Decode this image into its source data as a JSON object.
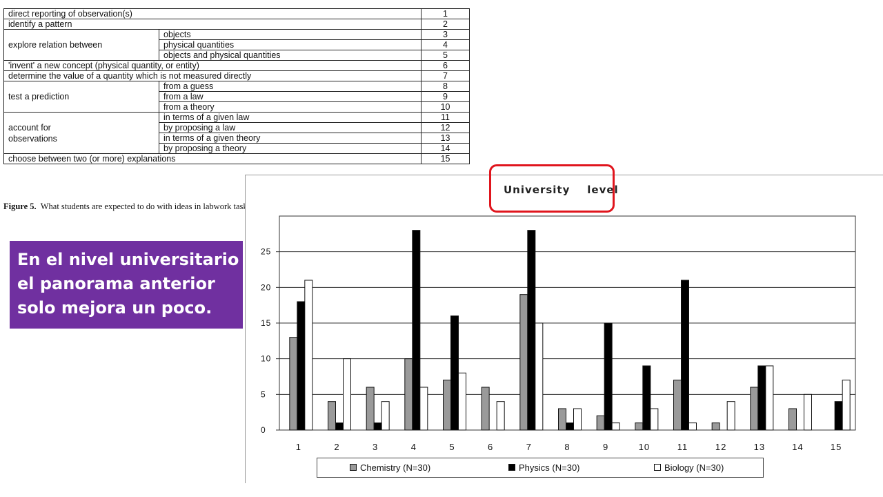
{
  "table": {
    "rows": [
      {
        "group": "direct reporting of observation(s)",
        "number": "1",
        "span": "full"
      },
      {
        "group": "identify a pattern",
        "number": "2",
        "span": "full"
      },
      {
        "group": "explore relation between",
        "subs": [
          {
            "label": "objects",
            "number": "3"
          },
          {
            "label": "physical quantities",
            "number": "4"
          },
          {
            "label": "objects and physical quantities",
            "number": "5"
          }
        ]
      },
      {
        "group": "'invent' a new concept (physical quantity, or entity)",
        "number": "6",
        "span": "full"
      },
      {
        "group": "determine the value of a quantity which is not measured directly",
        "number": "7",
        "span": "full"
      },
      {
        "group": "test a prediction",
        "subs": [
          {
            "label": "from a guess",
            "number": "8"
          },
          {
            "label": "from a law",
            "number": "9"
          },
          {
            "label": "from a theory",
            "number": "10"
          }
        ]
      },
      {
        "group": "account for observations",
        "group_lines": [
          "account for",
          "observations"
        ],
        "subs": [
          {
            "label": "in terms of a given law",
            "number": "11"
          },
          {
            "label": "by proposing a law",
            "number": "12"
          },
          {
            "label": "in terms of a given theory",
            "number": "13"
          },
          {
            "label": "by proposing a theory",
            "number": "14"
          }
        ]
      },
      {
        "group": "choose between two (or more) explanations",
        "number": "15",
        "span": "full"
      }
    ]
  },
  "caption": {
    "label": "Figure 5.",
    "text": "What students are expected to do with ideas in labwork tasks at upper secondary school and university levels."
  },
  "callout": {
    "lines": [
      "En el nivel universitario",
      "el panorama anterior",
      "solo mejora un poco."
    ],
    "color": "#7030a0"
  },
  "chart_title": "University    level",
  "highlight_color": "#e0151d",
  "chart_data": {
    "type": "bar",
    "title": "University level",
    "categories": [
      "1",
      "2",
      "3",
      "4",
      "5",
      "6",
      "7",
      "8",
      "9",
      "10",
      "11",
      "12",
      "13",
      "14",
      "15"
    ],
    "ylim": [
      0,
      28
    ],
    "yticks": [
      0,
      5,
      10,
      15,
      20,
      25
    ],
    "grid": true,
    "legend_position": "bottom",
    "series": [
      {
        "name": "Chemistry  (N=30)",
        "color": "#9a9a9a",
        "values": [
          13,
          4,
          6,
          10,
          7,
          6,
          19,
          3,
          2,
          1,
          7,
          1,
          6,
          3,
          0
        ]
      },
      {
        "name": "Physics  (N=30)",
        "color": "#000000",
        "values": [
          18,
          1,
          1,
          28,
          16,
          0,
          28,
          1,
          15,
          9,
          21,
          0,
          9,
          0,
          4
        ]
      },
      {
        "name": "Biology  (N=30)",
        "color": "#ffffff",
        "values": [
          21,
          10,
          4,
          6,
          8,
          4,
          15,
          3,
          1,
          3,
          1,
          4,
          9,
          5,
          7
        ]
      }
    ]
  }
}
